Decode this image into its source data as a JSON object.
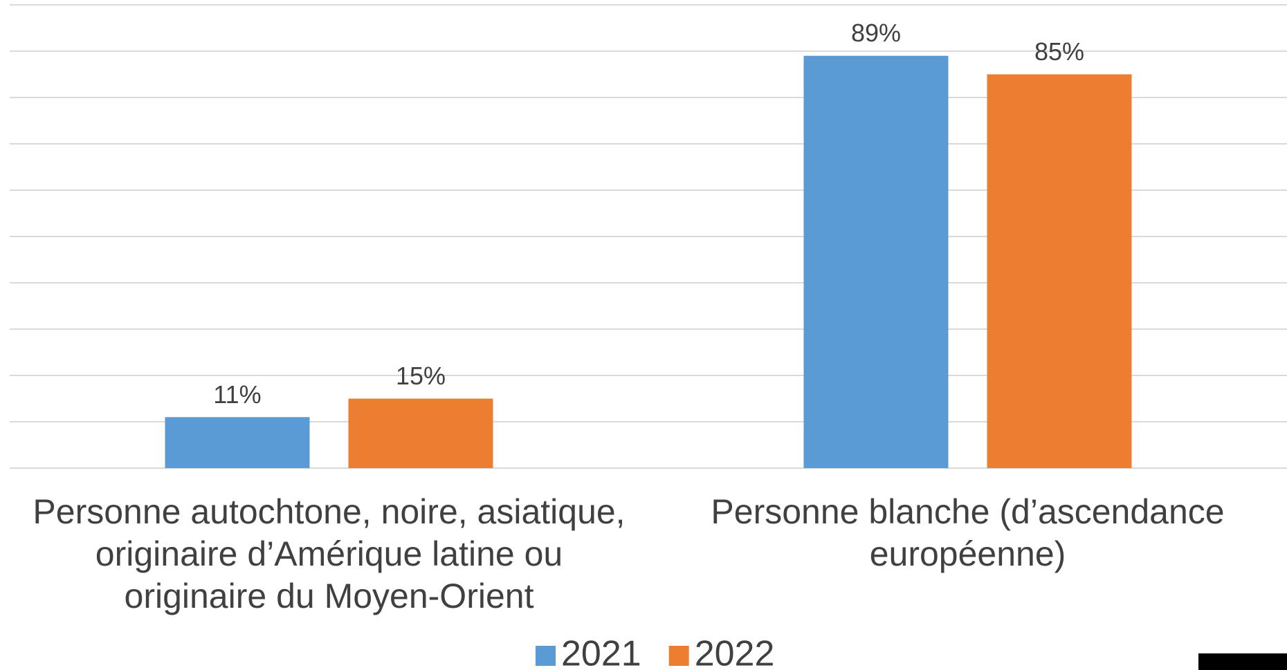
{
  "chart_data": {
    "type": "bar",
    "categories": [
      "Personne autochtone, noire, asiatique,\noriginaire d’Amérique latine ou\noriginaire du Moyen-Orient",
      "Personne blanche (d’ascendance\neuropéenne)"
    ],
    "series": [
      {
        "name": "2021",
        "color": "#5b9bd5",
        "values": [
          11,
          89
        ],
        "value_labels": [
          "11%",
          "89%"
        ]
      },
      {
        "name": "2022",
        "color": "#ed7d31",
        "values": [
          15,
          85
        ],
        "value_labels": [
          "15%",
          "85%"
        ]
      }
    ],
    "ylim": [
      0,
      100
    ],
    "yticks": [
      0,
      10,
      20,
      30,
      40,
      50,
      60,
      70,
      80,
      90,
      100
    ],
    "grid": true,
    "legend": "bottom"
  }
}
